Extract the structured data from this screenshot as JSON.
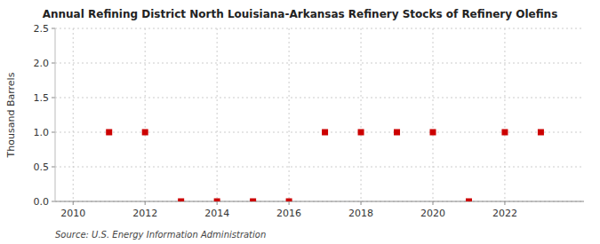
{
  "chart_data": {
    "type": "scatter",
    "title": "Annual Refining District North Louisiana-Arkansas Refinery Stocks of Refinery Olefins",
    "y_label": "Thousand Barrels",
    "annotation": "Source: U.S. Energy Information Administration",
    "x": [
      2011,
      2012,
      2013,
      2014,
      2015,
      2016,
      2017,
      2018,
      2019,
      2020,
      2021,
      2022,
      2023
    ],
    "values": [
      1.0,
      1.0,
      0.0,
      0.0,
      0.0,
      0.0,
      1.0,
      1.0,
      1.0,
      1.0,
      0.0,
      1.0,
      1.0
    ],
    "color": "#cc0000",
    "marker": "square",
    "xlim": [
      2009.5,
      2024.2
    ],
    "ylim": [
      0.0,
      2.5
    ],
    "xticks": [
      2010,
      2012,
      2014,
      2016,
      2018,
      2020,
      2022
    ],
    "yticks": [
      {
        "value": 0.0,
        "label": "0.0"
      },
      0.5,
      {
        "value": 1.0,
        "label": "1.0"
      },
      1.5,
      {
        "value": 2.0,
        "label": "2.0"
      },
      2.5
    ],
    "grid": true
  }
}
